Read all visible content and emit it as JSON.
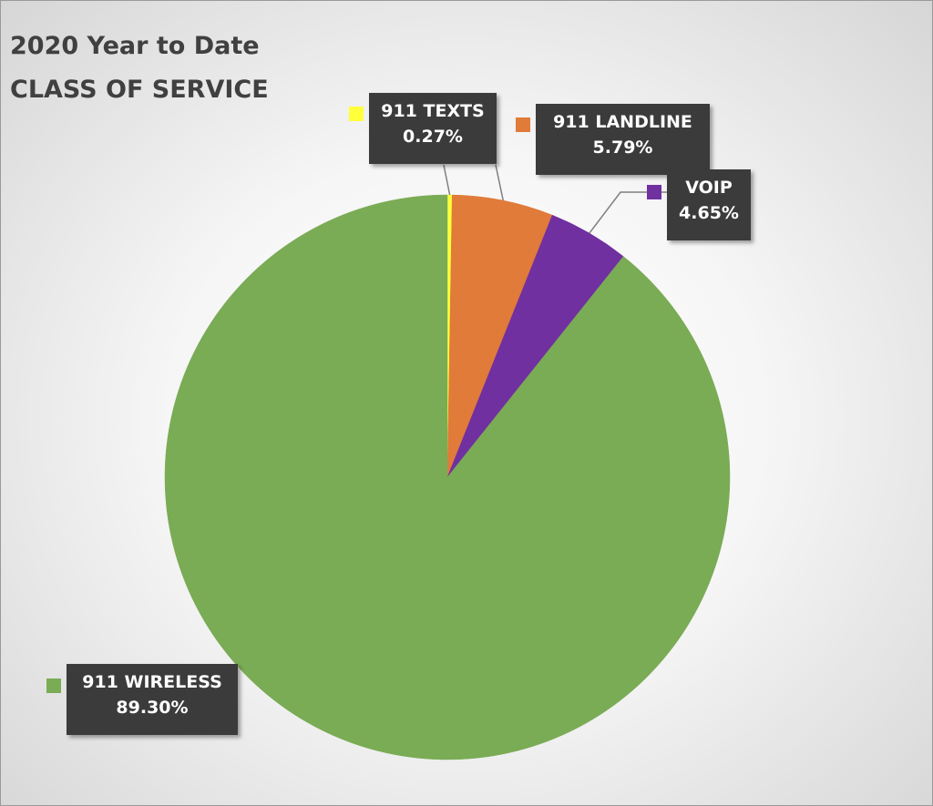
{
  "chart_data": {
    "type": "pie",
    "title": [
      "2020 Year to Date",
      "CLASS OF SERVICE"
    ],
    "slices": [
      {
        "name": "911 TEXTS",
        "value": 0.27,
        "label": "0.27%",
        "color": "#ffff3c"
      },
      {
        "name": "911 LANDLINE",
        "value": 5.79,
        "label": "5.79%",
        "color": "#e07b39"
      },
      {
        "name": "VOIP",
        "value": 4.65,
        "label": "4.65%",
        "color": "#7030a0"
      },
      {
        "name": "911 WIRELESS",
        "value": 89.3,
        "label": "89.30%",
        "color": "#7aab55"
      }
    ],
    "legend": "none",
    "data_labels": "callout"
  }
}
